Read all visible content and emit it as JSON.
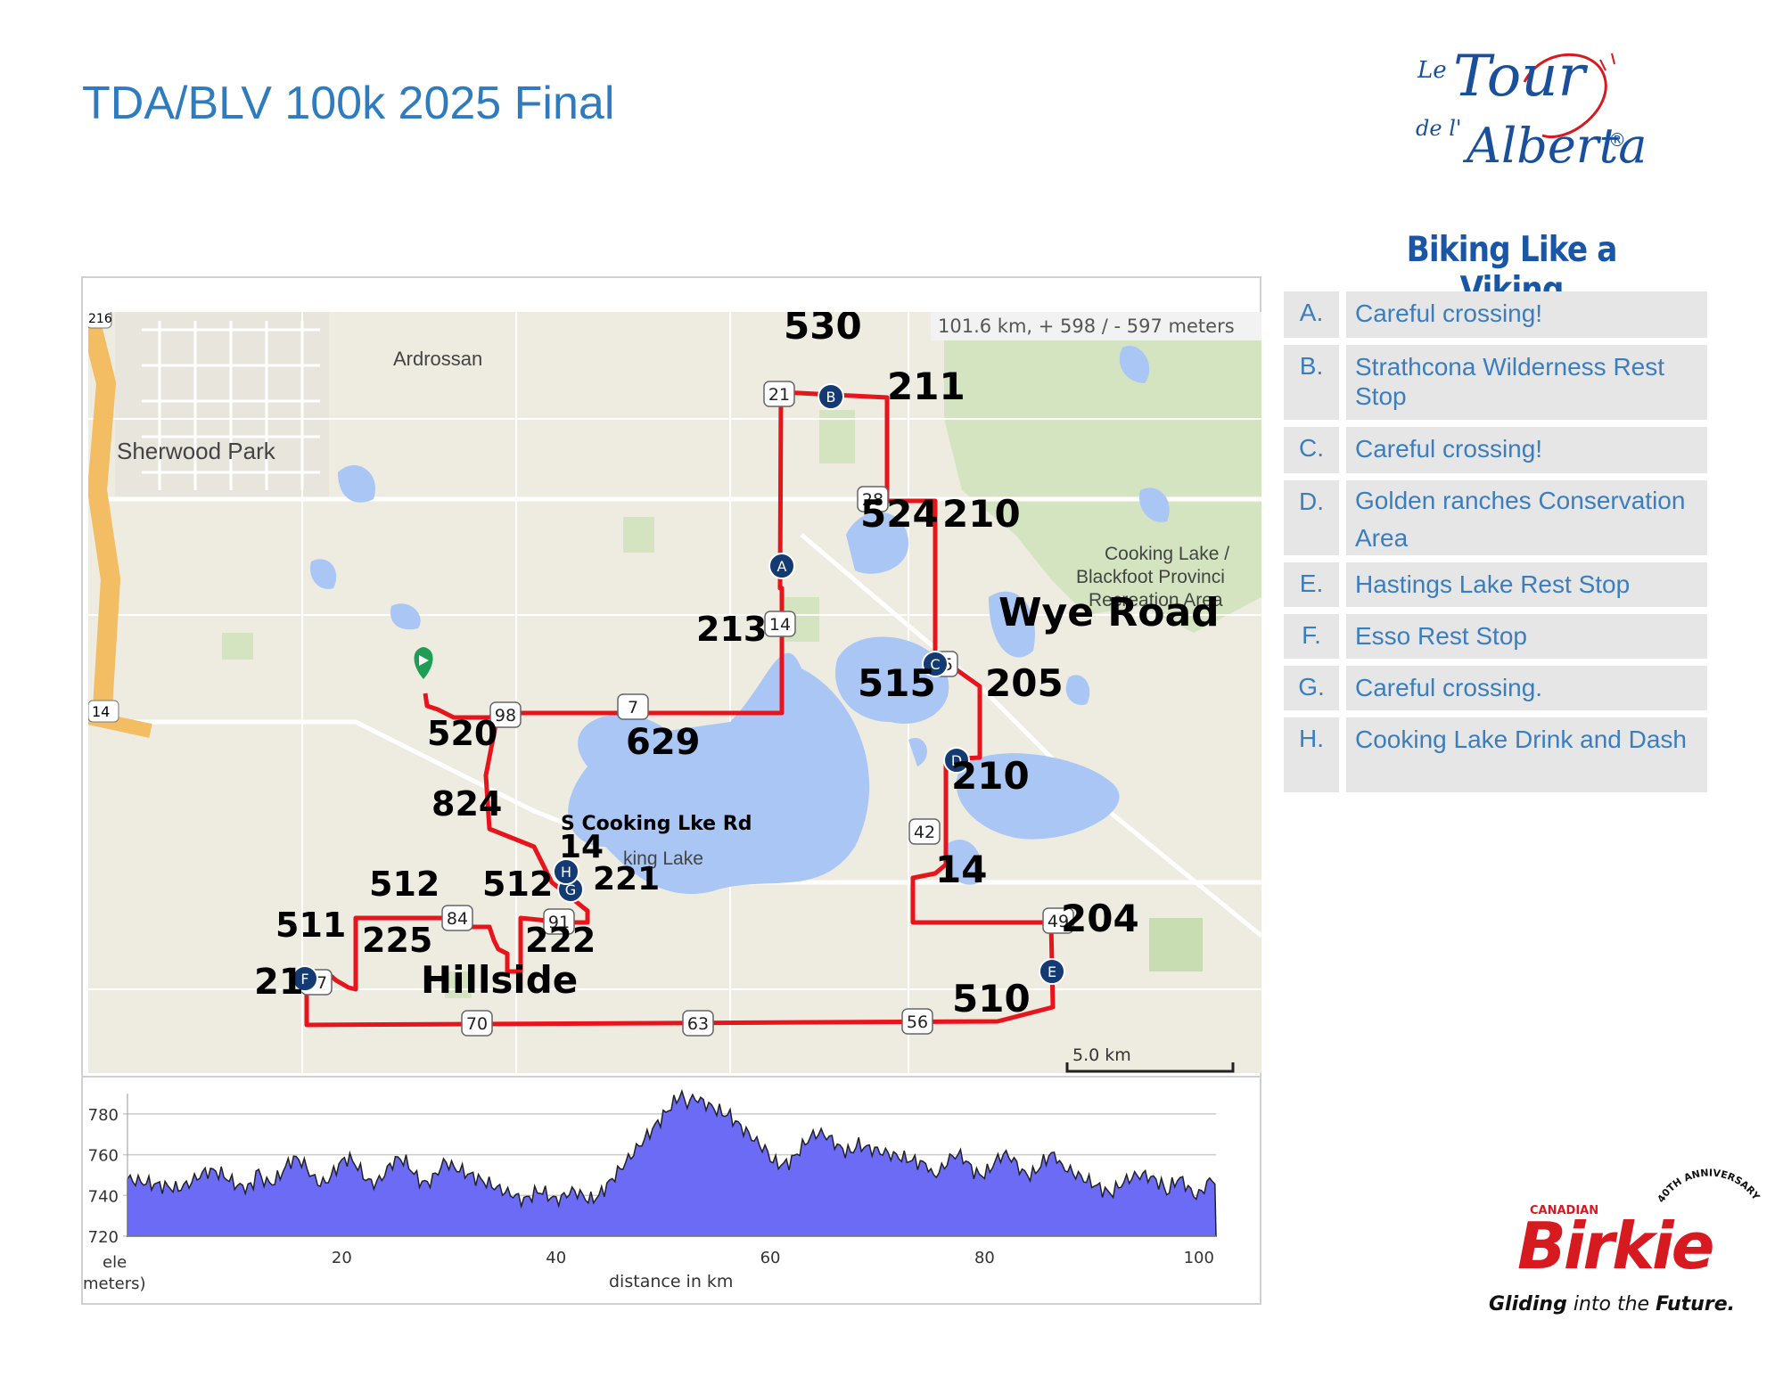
{
  "title": "TDA/BLV 100k 2025 Final",
  "logo": {
    "text_le": "Le",
    "text_tour": "Tour",
    "text_de": "de l'",
    "text_alberta": "Alberta",
    "registered": "®"
  },
  "tagline": "Biking Like a Viking",
  "stops": [
    {
      "letter": "A.",
      "text": "Careful crossing!"
    },
    {
      "letter": "B.",
      "text": "Strathcona Wilderness Rest Stop"
    },
    {
      "letter": "C.",
      "text": "Careful crossing!"
    },
    {
      "letter": "D.",
      "text": "Golden ranches Conservation Area"
    },
    {
      "letter": "E.",
      "text": "Hastings Lake Rest Stop"
    },
    {
      "letter": "F.",
      "text": "Esso Rest Stop"
    },
    {
      "letter": "G.",
      "text": "Careful crossing."
    },
    {
      "letter": "H.",
      "text": "Cooking Lake Drink and Dash"
    }
  ],
  "map": {
    "summary": "101.6 km, + 598 / - 597 meters",
    "scale_label": "5.0 km",
    "places": [
      "Ardrossan",
      "Sherwood Park",
      "Cooking Lake /",
      "Blackfoot Provinci",
      "Recreation Area",
      "king Lake"
    ],
    "edge_shields": [
      "216",
      "14"
    ],
    "route_shields": [
      "21",
      "28",
      "14",
      "55",
      "42",
      "49",
      "98",
      "7",
      "84",
      "91",
      "37",
      "70",
      "63",
      "56"
    ],
    "marker_letters": [
      "A",
      "B",
      "C",
      "D",
      "E",
      "F",
      "G",
      "H"
    ],
    "road_labels": [
      "530",
      "211",
      "524",
      "210",
      "213",
      "Wye Road",
      "515",
      "205",
      "520",
      "629",
      "210",
      "824",
      "S Cooking Lke Rd",
      "14",
      "221",
      "14",
      "512",
      "512",
      "204",
      "511",
      "225",
      "222",
      "Hillside",
      "21",
      "510"
    ]
  },
  "elevation": {
    "y_ticks": [
      "780",
      "760",
      "740",
      "720"
    ],
    "x_ticks": [
      "20",
      "40",
      "60",
      "80",
      "100"
    ],
    "y_unit_line1": "ele",
    "y_unit_line2": "meters)",
    "x_label": "distance in km",
    "fill_color": "#6b6bf5"
  },
  "birkie": {
    "canadian": "CANADIAN",
    "name": "Birkie",
    "anniversary": "40TH ANNIVERSARY",
    "slogan_1": "Gliding",
    "slogan_2": " into the ",
    "slogan_3": "Future."
  },
  "colors": {
    "title": "#2f7bbf",
    "route": "#e8141b",
    "water": "#a9c6f5",
    "marker": "#143a74",
    "brand_red": "#d71920"
  }
}
